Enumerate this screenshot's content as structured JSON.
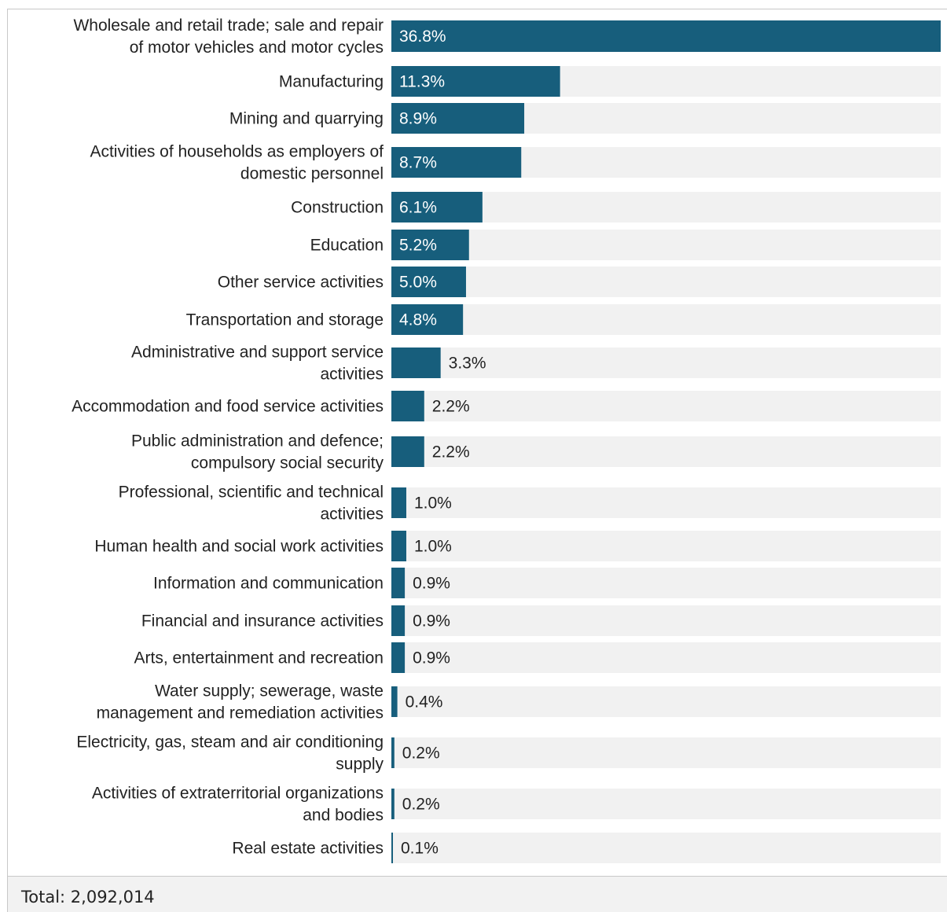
{
  "colors": {
    "bar": "#175e7c",
    "track": "#f1f1f1",
    "label_in": "#ffffff",
    "label_out": "#222222"
  },
  "footer": {
    "total_text": "Total: 2,092,014"
  },
  "chart_data": {
    "type": "bar",
    "orientation": "horizontal",
    "xlim": [
      0,
      36.8
    ],
    "categories": [
      [
        "Wholesale and retail trade; sale and repair",
        "of motor vehicles and motor cycles"
      ],
      [
        "Manufacturing"
      ],
      [
        "Mining and quarrying"
      ],
      [
        "Activities of households as employers of",
        "domestic personnel"
      ],
      [
        "Construction"
      ],
      [
        "Education"
      ],
      [
        "Other service activities"
      ],
      [
        "Transportation and storage"
      ],
      [
        "Administrative and support service",
        "activities"
      ],
      [
        "Accommodation and food service activities"
      ],
      [
        "Public administration and defence;",
        "compulsory social security"
      ],
      [
        "Professional, scientific and technical",
        "activities"
      ],
      [
        "Human health and social work activities"
      ],
      [
        "Information and communication"
      ],
      [
        "Financial and insurance activities"
      ],
      [
        "Arts, entertainment and recreation"
      ],
      [
        "Water supply; sewerage, waste",
        "management and remediation activities"
      ],
      [
        "Electricity, gas, steam and air conditioning",
        "supply"
      ],
      [
        "Activities of extraterritorial organizations",
        "and bodies"
      ],
      [
        "Real estate activities"
      ]
    ],
    "values": [
      36.8,
      11.3,
      8.9,
      8.7,
      6.1,
      5.2,
      5.0,
      4.8,
      3.3,
      2.2,
      2.2,
      1.0,
      1.0,
      0.9,
      0.9,
      0.9,
      0.4,
      0.2,
      0.2,
      0.1
    ],
    "value_labels": [
      "36.8%",
      "11.3%",
      "8.9%",
      "8.7%",
      "6.1%",
      "5.2%",
      "5.0%",
      "4.8%",
      "3.3%",
      "2.2%",
      "2.2%",
      "1.0%",
      "1.0%",
      "0.9%",
      "0.9%",
      "0.9%",
      "0.4%",
      "0.2%",
      "0.2%",
      "0.1%"
    ]
  }
}
